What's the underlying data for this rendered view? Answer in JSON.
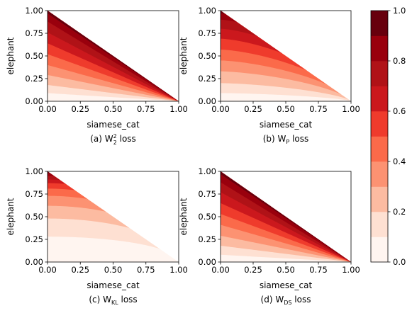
{
  "chart_data": {
    "type": "heatmap",
    "description_free": true,
    "panels": [
      {
        "name": "W2 squared loss",
        "caption_main": "(a) W",
        "caption_sub": "2",
        "caption_sup": "2",
        "caption_tail": " loss",
        "xlabel": "siamese_cat",
        "ylabel": "elephant",
        "xlim": [
          0,
          1
        ],
        "ylim": [
          0,
          1
        ],
        "xticks": [
          "0.00",
          "0.25",
          "0.50",
          "0.75",
          "1.00"
        ],
        "yticks": [
          "0.00",
          "0.25",
          "0.50",
          "0.75",
          "1.00"
        ],
        "contour_y_intercepts": [
          0.09,
          0.18,
          0.29,
          0.4,
          0.52,
          0.64,
          0.76,
          0.88,
          0.97
        ],
        "contour_curvature": 1.0
      },
      {
        "name": "WP loss",
        "caption_main": "(b) W",
        "caption_sub": "P",
        "caption_sup": "",
        "caption_tail": " loss",
        "xlabel": "siamese_cat",
        "ylabel": "elephant",
        "xlim": [
          0,
          1
        ],
        "ylim": [
          0,
          1
        ],
        "xticks": [
          "0.00",
          "0.25",
          "0.50",
          "0.75",
          "1.00"
        ],
        "yticks": [
          "0.00",
          "0.25",
          "0.50",
          "0.75",
          "1.00"
        ],
        "contour_y_intercepts": [
          0.09,
          0.2,
          0.33,
          0.45,
          0.57,
          0.69,
          0.8,
          0.9,
          0.97
        ],
        "contour_curvature": 1.5
      },
      {
        "name": "WKL loss",
        "caption_main": "(c) W",
        "caption_sub": "KL",
        "caption_sup": "",
        "caption_tail": " loss",
        "xlabel": "siamese_cat",
        "ylabel": "elephant",
        "xlim": [
          0,
          1
        ],
        "ylim": [
          0,
          1
        ],
        "xticks": [
          "0.00",
          "0.25",
          "0.50",
          "0.75",
          "1.00"
        ],
        "yticks": [
          "0.00",
          "0.25",
          "0.50",
          "0.75",
          "1.00"
        ],
        "contour_y_intercepts": [
          0.28,
          0.48,
          0.62,
          0.73,
          0.81,
          0.87,
          0.91,
          0.95,
          0.98
        ],
        "contour_curvature": 2.0
      },
      {
        "name": "WDS loss",
        "caption_main": "(d) W",
        "caption_sub": "DS",
        "caption_sup": "",
        "caption_tail": " loss",
        "xlabel": "siamese_cat",
        "ylabel": "elephant",
        "xlim": [
          0,
          1
        ],
        "ylim": [
          0,
          1
        ],
        "xticks": [
          "0.00",
          "0.25",
          "0.50",
          "0.75",
          "1.00"
        ],
        "yticks": [
          "0.00",
          "0.25",
          "0.50",
          "0.75",
          "1.00"
        ],
        "contour_y_intercepts": [
          0.08,
          0.18,
          0.29,
          0.41,
          0.53,
          0.65,
          0.77,
          0.88,
          0.97
        ],
        "contour_curvature": 1.0
      }
    ],
    "colorbar": {
      "range": [
        0,
        1
      ],
      "levels": [
        0.0,
        0.1,
        0.2,
        0.3,
        0.4,
        0.5,
        0.6,
        0.7,
        0.8,
        0.9,
        1.0
      ],
      "ticks": [
        "0.0",
        "0.2",
        "0.4",
        "0.6",
        "0.8",
        "1.0"
      ],
      "colors": [
        "#fff5f0",
        "#fee0d2",
        "#fcbba1",
        "#fc9272",
        "#fb6a4a",
        "#ef3b2c",
        "#cb181d",
        "#b01217",
        "#99000d",
        "#67000d"
      ],
      "colormap": "Reds"
    }
  }
}
